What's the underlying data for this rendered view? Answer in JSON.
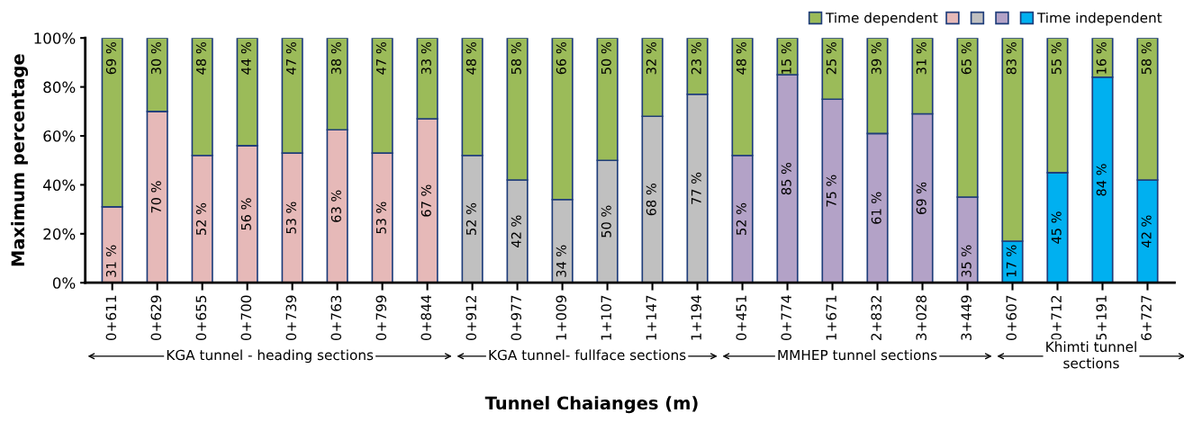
{
  "chart_data": {
    "type": "bar",
    "stacked": true,
    "xlabel": "Tunnel Chaianges (m)",
    "ylabel": "Maximum percentage",
    "categories": [
      "0+611",
      "0+629",
      "0+655",
      "0+700",
      "0+739",
      "0+763",
      "0+799",
      "0+844",
      "0+912",
      "0+977",
      "1+009",
      "1+107",
      "1+147",
      "1+194",
      "0+451",
      "0+774",
      "1+671",
      "2+832",
      "3+028",
      "3+449",
      "0+607",
      "0+712",
      "5+191",
      "6+727"
    ],
    "series": [
      {
        "color": "#e6b9b8",
        "values": [
          31,
          70,
          52,
          56,
          53,
          62.5,
          53,
          67,
          null,
          null,
          null,
          null,
          null,
          null,
          null,
          null,
          null,
          null,
          null,
          null,
          null,
          null,
          null,
          null
        ],
        "value_labels": [
          "31 %",
          "70 %",
          "52 %",
          "56 %",
          "53 %",
          "63 %",
          "53 %",
          "67 %",
          null,
          null,
          null,
          null,
          null,
          null,
          null,
          null,
          null,
          null,
          null,
          null,
          null,
          null,
          null,
          null
        ]
      },
      {
        "color": "#c0c0c0",
        "values": [
          null,
          null,
          null,
          null,
          null,
          null,
          null,
          null,
          52,
          42,
          34,
          50,
          68,
          77,
          null,
          null,
          null,
          null,
          null,
          null,
          null,
          null,
          null,
          null
        ],
        "value_labels": [
          null,
          null,
          null,
          null,
          null,
          null,
          null,
          null,
          "52 %",
          "42 %",
          "34 %",
          "50 %",
          "68 %",
          "77 %",
          null,
          null,
          null,
          null,
          null,
          null,
          null,
          null,
          null,
          null
        ]
      },
      {
        "color": "#b3a2c7",
        "values": [
          null,
          null,
          null,
          null,
          null,
          null,
          null,
          null,
          null,
          null,
          null,
          null,
          null,
          null,
          52,
          85,
          75,
          61,
          69,
          35,
          null,
          null,
          null,
          null
        ],
        "value_labels": [
          null,
          null,
          null,
          null,
          null,
          null,
          null,
          null,
          null,
          null,
          null,
          null,
          null,
          null,
          "52 %",
          "85 %",
          "75 %",
          "61 %",
          "69 %",
          "35 %",
          null,
          null,
          null,
          null
        ]
      },
      {
        "name": "Time independent",
        "color": "#00b0f0",
        "values": [
          null,
          null,
          null,
          null,
          null,
          null,
          null,
          null,
          null,
          null,
          null,
          null,
          null,
          null,
          null,
          null,
          null,
          null,
          null,
          null,
          17,
          45,
          84,
          42
        ],
        "value_labels": [
          null,
          null,
          null,
          null,
          null,
          null,
          null,
          null,
          null,
          null,
          null,
          null,
          null,
          null,
          null,
          null,
          null,
          null,
          null,
          null,
          "17 %",
          "45 %",
          "84 %",
          "42 %"
        ]
      },
      {
        "name": "Time dependent",
        "color": "#9bbb59",
        "values": [
          69,
          30,
          48,
          44,
          47,
          37.5,
          47,
          33,
          48,
          58,
          66,
          50,
          32,
          23,
          48,
          15,
          25,
          39,
          31,
          65,
          83,
          55,
          16,
          58
        ],
        "value_labels": [
          "69 %",
          "30 %",
          "48 %",
          "44 %",
          "47 %",
          "38 %",
          "47 %",
          "33 %",
          "48 %",
          "58 %",
          "66 %",
          "50 %",
          "32 %",
          "23 %",
          "48 %",
          "15 %",
          "25 %",
          "39 %",
          "31 %",
          "65 %",
          "83 %",
          "55 %",
          "16 %",
          "58 %"
        ]
      }
    ],
    "ylim": [
      0,
      100
    ],
    "yticks": [
      {
        "value": 0,
        "label": "0%"
      },
      {
        "value": 20,
        "label": "20%"
      },
      {
        "value": 40,
        "label": "40%"
      },
      {
        "value": 60,
        "label": "60%"
      },
      {
        "value": 80,
        "label": "80%"
      },
      {
        "value": 100,
        "label": "100%"
      }
    ],
    "grid": false,
    "legend": "top right",
    "annotations": [
      "KGA tunnel - heading sections",
      "KGA tunnel- fullface sections",
      "MMHEP tunnel sections",
      "Khimti tunnel\nsections"
    ]
  }
}
